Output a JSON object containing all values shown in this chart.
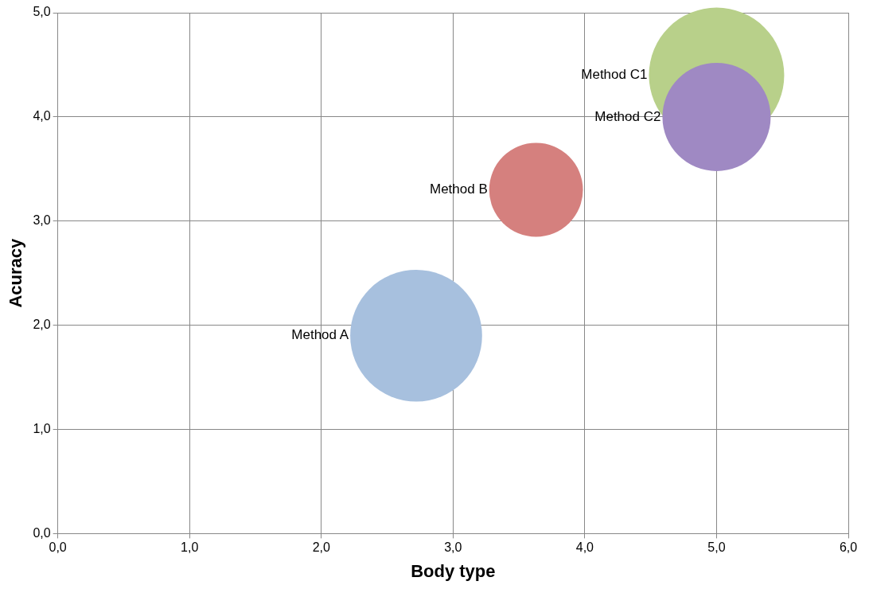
{
  "chart_data": {
    "type": "bubble",
    "xlabel": "Body type",
    "ylabel": "Acuracy",
    "xlim": [
      0,
      6
    ],
    "xticks": [
      {
        "value": 0,
        "label": "0,0"
      },
      {
        "value": 1,
        "label": "1,0"
      },
      {
        "value": 2,
        "label": "2,0"
      },
      {
        "value": 3,
        "label": "3,0"
      },
      {
        "value": 4,
        "label": "4,0"
      },
      {
        "value": 5,
        "label": "5,0"
      },
      {
        "value": 6,
        "label": "6,0"
      }
    ],
    "ylim": [
      0,
      5
    ],
    "yticks": [
      {
        "value": 0,
        "label": "0,0"
      },
      {
        "value": 1,
        "label": "1,0"
      },
      {
        "value": 2,
        "label": "2,0"
      },
      {
        "value": 3,
        "label": "3,0"
      },
      {
        "value": 4,
        "label": "4,0"
      },
      {
        "value": 5,
        "label": "5,0"
      }
    ],
    "grid": true,
    "legend": false,
    "series": [
      {
        "name": "Method A",
        "color": "#a7c0de",
        "x": [
          2.72
        ],
        "values": [
          1.9
        ],
        "sizes": [
          0.95
        ]
      },
      {
        "name": "Method B",
        "color": "#d5807e",
        "x": [
          3.63
        ],
        "values": [
          3.3
        ],
        "sizes": [
          0.48
        ]
      },
      {
        "name": "Method C1",
        "color": "#b8d08a",
        "x": [
          5.0
        ],
        "values": [
          4.4
        ],
        "sizes": [
          1
        ]
      },
      {
        "name": "Method C2",
        "color": "#9f89c3",
        "x": [
          5.0
        ],
        "values": [
          4.0
        ],
        "sizes": [
          0.64
        ]
      }
    ]
  }
}
